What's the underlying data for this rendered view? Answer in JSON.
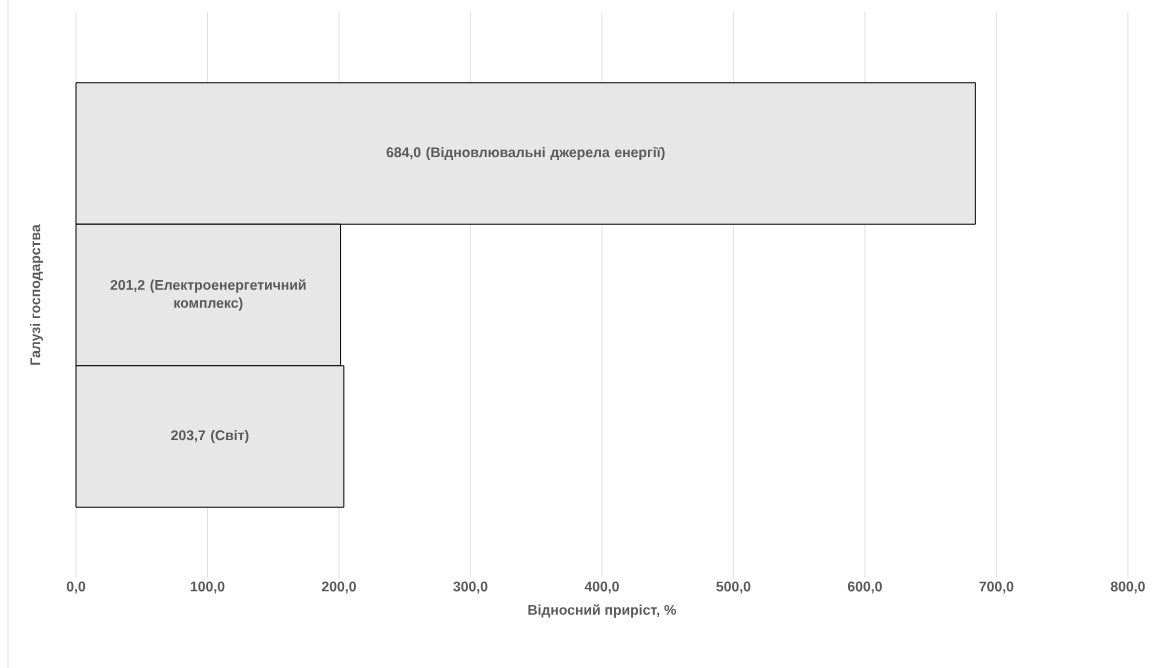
{
  "chart_data": {
    "type": "bar",
    "orientation": "horizontal",
    "xlabel": "Відносний приріст, %",
    "ylabel": "Галузі господарства",
    "categories": [
      null,
      null,
      null
    ],
    "values": [
      684.0,
      201.2,
      203.7
    ],
    "value_labels": [
      "684,0 (Відновлювальні джерела енергії)",
      "201,2 (Електроенергетичний комплекс)",
      "203,7 (Світ)"
    ],
    "color": "#e7e7e7",
    "xlim": [
      0,
      800
    ],
    "xticks": [
      {
        "value": 0,
        "label": "0,0"
      },
      {
        "value": 100,
        "label": "100,0"
      },
      {
        "value": 200,
        "label": "200,0"
      },
      {
        "value": 300,
        "label": "300,0"
      },
      {
        "value": 400,
        "label": "400,0"
      },
      {
        "value": 500,
        "label": "500,0"
      },
      {
        "value": 600,
        "label": "600,0"
      },
      {
        "value": 700,
        "label": "700,0"
      },
      {
        "value": 800,
        "label": "800,0"
      }
    ],
    "grid": "x"
  }
}
